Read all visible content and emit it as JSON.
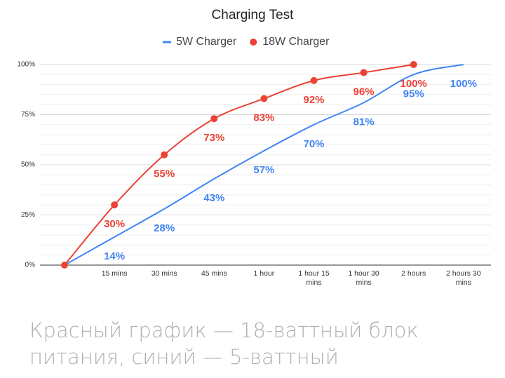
{
  "chart_data": {
    "type": "line",
    "title": "Charging Test",
    "categories": [
      null,
      "15 mins",
      "30 mins",
      "45 mins",
      "1 hour",
      "1 hour 15 mins",
      "1 hour 30 mins",
      "2 hours",
      "2 hours 30 mins"
    ],
    "series": [
      {
        "name": "5W Charger",
        "color": "#4285f4",
        "values": [
          0,
          14,
          28,
          43,
          57,
          70,
          81,
          95,
          100
        ],
        "value_labels": [
          null,
          "14%",
          "28%",
          "43%",
          "57%",
          "70%",
          "81%",
          "95%",
          "100%"
        ],
        "marker": false
      },
      {
        "name": "18W Charger",
        "color": "#ea4335",
        "values": [
          0,
          30,
          55,
          73,
          83,
          92,
          96,
          100,
          null
        ],
        "value_labels": [
          null,
          "30%",
          "55%",
          "73%",
          "83%",
          "92%",
          "96%",
          "100%",
          null
        ],
        "marker": true
      }
    ],
    "ylim": [
      0,
      100
    ],
    "yticks": [
      {
        "value": 0,
        "label": "0%"
      },
      {
        "value": 25,
        "label": "25%"
      },
      {
        "value": 50,
        "label": "50%"
      },
      {
        "value": 75,
        "label": "75%"
      },
      {
        "value": 100,
        "label": "100%"
      }
    ],
    "minor_yticks": [
      5,
      10,
      15,
      20,
      30,
      35,
      40,
      45,
      55,
      60,
      65,
      70,
      80,
      85,
      90,
      95
    ],
    "grid": true,
    "legend": "top",
    "caption": [
      "Красный график — 18-ваттный блок",
      "питания, синий — 5-ваттный"
    ]
  }
}
